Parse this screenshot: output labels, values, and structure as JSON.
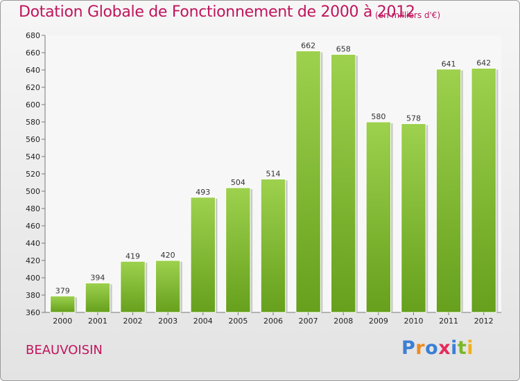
{
  "header": {
    "title": "Dotation Globale de Fonctionnement de 2000 à 2012",
    "subtitle": "(en milliers d'€)"
  },
  "footer": {
    "place": "BEAUVOISIN",
    "logo": "Proxiti"
  },
  "colors": {
    "title": "#c0145c",
    "bar_top": "#9dd14e",
    "bar_bottom": "#66a01c"
  },
  "chart_data": {
    "type": "bar",
    "title": "Dotation Globale de Fonctionnement de 2000 à 2012",
    "subtitle": "(en milliers d'€)",
    "categories": [
      "2000",
      "2001",
      "2002",
      "2003",
      "2004",
      "2005",
      "2006",
      "2007",
      "2008",
      "2009",
      "2010",
      "2011",
      "2012"
    ],
    "values": [
      379,
      394,
      419,
      420,
      493,
      504,
      514,
      662,
      658,
      580,
      578,
      641,
      642
    ],
    "ylim": [
      360,
      680
    ],
    "ytick_step": 20,
    "grid": false,
    "legend": "none"
  }
}
